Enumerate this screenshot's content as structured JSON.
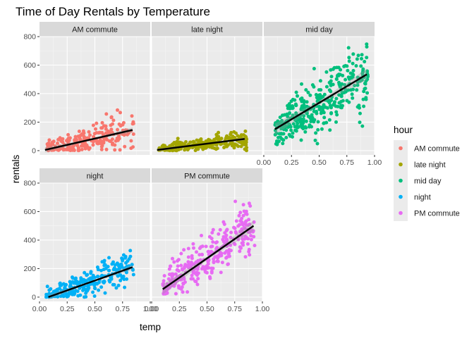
{
  "chart_data": {
    "type": "scatter",
    "title": "Time of Day Rentals by Temperature",
    "xlabel": "temp",
    "ylabel": "rentals",
    "xlim": [
      0,
      1
    ],
    "ylim": [
      -30,
      800
    ],
    "x_ticks": [
      0.0,
      0.25,
      0.5,
      0.75,
      1.0
    ],
    "x_tick_labels": [
      "0.00",
      "0.25",
      "0.50",
      "0.75",
      "1.00"
    ],
    "y_ticks": [
      0,
      200,
      400,
      600,
      800
    ],
    "y_tick_labels": [
      "0",
      "200",
      "400",
      "600",
      "800"
    ],
    "grid": true,
    "legend": {
      "title": "hour",
      "position": "right",
      "entries": [
        {
          "label": "AM commute",
          "color": "#F8766D"
        },
        {
          "label": "late night",
          "color": "#A3A500"
        },
        {
          "label": "mid day",
          "color": "#00BF7D"
        },
        {
          "label": "night",
          "color": "#00B0F6"
        },
        {
          "label": "PM commute",
          "color": "#E76BF3"
        }
      ]
    },
    "facets": [
      {
        "name": "AM commute",
        "color": "#F8766D",
        "trend": {
          "x0": 0.05,
          "y0": 5,
          "x1": 0.84,
          "y1": 145,
          "band": 10
        },
        "points": {
          "count": 230,
          "x_range": [
            0.07,
            0.85
          ],
          "y_mean_slope": 150,
          "y_mean_intercept": 5,
          "spread": 55,
          "y_min": 0,
          "y_max": 330
        }
      },
      {
        "name": "late night",
        "color": "#A3A500",
        "trend": {
          "x0": 0.05,
          "y0": 5,
          "x1": 0.84,
          "y1": 82,
          "band": 6
        },
        "points": {
          "count": 260,
          "x_range": [
            0.06,
            0.86
          ],
          "y_mean_slope": 90,
          "y_mean_intercept": 3,
          "spread": 30,
          "y_min": 0,
          "y_max": 190
        }
      },
      {
        "name": "mid day",
        "color": "#00BF7D",
        "trend": {
          "x0": 0.1,
          "y0": 150,
          "x1": 0.93,
          "y1": 535,
          "band": 22
        },
        "points": {
          "count": 360,
          "x_range": [
            0.1,
            0.94
          ],
          "y_mean_slope": 470,
          "y_mean_intercept": 100,
          "spread": 110,
          "y_min": 40,
          "y_max": 780
        }
      },
      {
        "name": "night",
        "color": "#00B0F6",
        "trend": {
          "x0": 0.08,
          "y0": 0,
          "x1": 0.84,
          "y1": 210,
          "band": 10
        },
        "points": {
          "count": 280,
          "x_range": [
            0.06,
            0.85
          ],
          "y_mean_slope": 280,
          "y_mean_intercept": -20,
          "spread": 55,
          "y_min": 0,
          "y_max": 400
        }
      },
      {
        "name": "PM commute",
        "color": "#E76BF3",
        "trend": {
          "x0": 0.1,
          "y0": 55,
          "x1": 0.92,
          "y1": 500,
          "band": 20
        },
        "points": {
          "count": 310,
          "x_range": [
            0.1,
            0.93
          ],
          "y_mean_slope": 540,
          "y_mean_intercept": 0,
          "spread": 90,
          "y_min": 20,
          "y_max": 700
        }
      }
    ]
  }
}
